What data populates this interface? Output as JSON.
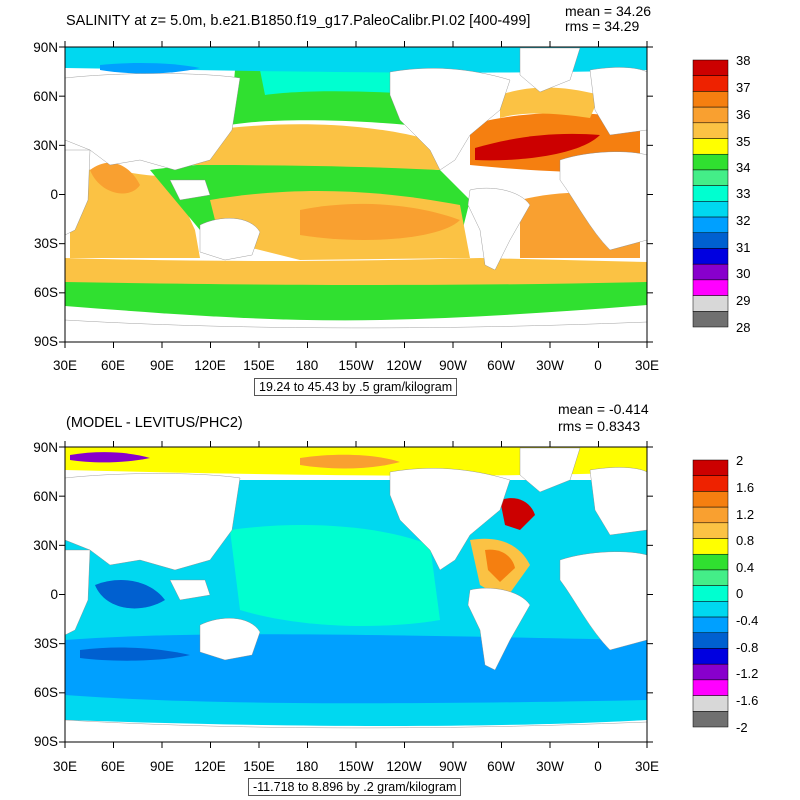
{
  "panels": [
    {
      "title": "SALINITY at z=   5.0m, b.e21.B1850.f19_g17.PaleoCalibr.PI.02 [400-499]",
      "mean": "mean = 34.26",
      "rms": "rms = 34.29",
      "info": "19.24 to 45.43 by .5 gram/kilogram",
      "colorbar": {
        "labels": [
          "38",
          "37",
          "36",
          "35",
          "34",
          "33",
          "32",
          "31",
          "30",
          "29",
          "28"
        ],
        "colors": [
          "#cc0000",
          "#ee2200",
          "#f57f10",
          "#f9a030",
          "#fbc244",
          "#ffff00",
          "#30e030",
          "#44ee88",
          "#00ffd0",
          "#00d8f0",
          "#00a0ff",
          "#0060d0",
          "#0000e0",
          "#8800cc",
          "#ff00ff",
          "#d8d8d8",
          "#707070"
        ]
      }
    },
    {
      "title": "(MODEL - LEVITUS/PHC2)",
      "mean": "mean = -0.414",
      "rms": "rms = 0.8343",
      "info": "-11.718 to 8.896 by .2 gram/kilogram",
      "colorbar": {
        "labels": [
          "2",
          "1.6",
          "1.2",
          "0.8",
          "0.4",
          "0",
          "-0.4",
          "-0.8",
          "-1.2",
          "-1.6",
          "-2"
        ],
        "colors": [
          "#cc0000",
          "#ee2200",
          "#f57f10",
          "#f9a030",
          "#fbc244",
          "#ffff00",
          "#30e030",
          "#44ee88",
          "#00ffd0",
          "#00d8f0",
          "#00a0ff",
          "#0060d0",
          "#0000e0",
          "#8800cc",
          "#ff00ff",
          "#d8d8d8",
          "#707070"
        ]
      }
    }
  ],
  "axes": {
    "lat_labels": [
      "90N",
      "60N",
      "30N",
      "0",
      "30S",
      "60S",
      "90S"
    ],
    "lon_labels": [
      "30E",
      "60E",
      "90E",
      "120E",
      "150E",
      "180",
      "150W",
      "120W",
      "90W",
      "60W",
      "30W",
      "0",
      "30E"
    ]
  }
}
